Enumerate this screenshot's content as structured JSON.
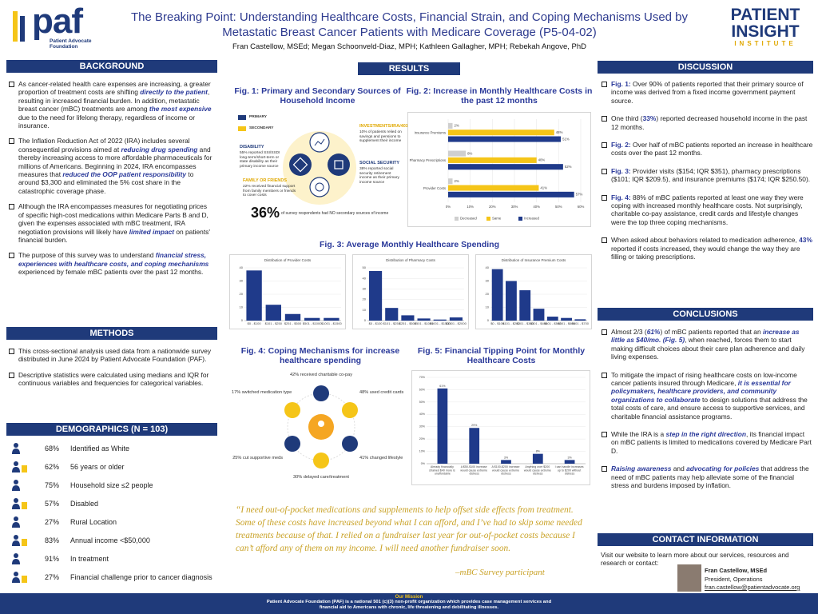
{
  "header": {
    "logo_left": "paf",
    "logo_left_sub": "Patient Advocate Foundation",
    "title": "The Breaking Point: Understanding Healthcare Costs, Financial Strain, and Coping Mechanisms Used by Metastatic Breast Cancer Patients with Medicare Coverage (P5-04-02)",
    "authors": "Fran Castellow, MSEd; Megan Schoonveld-Diaz, MPH; Kathleen Gallagher, MPH; Rebekah Angove, PhD",
    "logo_right": [
      "PATIENT",
      "INSIGHT",
      "INSTITUTE"
    ]
  },
  "background": {
    "heading": "BACKGROUND",
    "items": [
      [
        "As cancer-related health care expenses are increasing, a greater proportion of treatment costs are shifting ",
        "directly to the patient",
        ", resulting in increased financial burden. In addition, metastatic breast cancer (mBC) treatments are among ",
        "the most expensive",
        " due to the need for lifelong therapy, regardless of income or insurance."
      ],
      [
        "The Inflation Reduction Act of 2022 (IRA) includes several consequential provisions aimed at ",
        "reducing drug spending",
        " and thereby increasing access to more affordable pharmaceuticals for millions of Americans. Beginning in 2024, IRA encompasses measures that ",
        "reduced the OOP patient responsibility",
        " to around $3,300 and eliminated the 5% cost share in the catastrophic coverage phase."
      ],
      [
        "Although the IRA encompasses measures for negotiating prices of specific high-cost medications within Medicare Parts B and D, given the expenses associated with mBC treatment, IRA negotiation provisions will likely have ",
        "limited impact",
        " on patients' financial burden."
      ],
      [
        "The purpose of this survey was to understand ",
        "financial stress, experiences with healthcare costs, and coping mechanisms",
        " experienced by female mBC patients over the past 12 months."
      ]
    ]
  },
  "methods": {
    "heading": "METHODS",
    "items": [
      "This cross-sectional analysis used data from a nationwide survey distributed in June 2024 by Patient Advocate Foundation (PAF).",
      "Descriptive statistics were calculated using medians and IQR for continuous variables and frequencies for categorical variables."
    ]
  },
  "demographics": {
    "heading": "DEMOGRAPHICS (N = 103)",
    "items": [
      {
        "pct": "68%",
        "label": "Identified as White"
      },
      {
        "pct": "62%",
        "label": "56 years or older"
      },
      {
        "pct": "75%",
        "label": "Household size ≤2 people"
      },
      {
        "pct": "57%",
        "label": "Disabled"
      },
      {
        "pct": "27%",
        "label": "Rural Location"
      },
      {
        "pct": "83%",
        "label": "Annual income <$50,000"
      },
      {
        "pct": "91%",
        "label": "In treatment"
      },
      {
        "pct": "27%",
        "label": "Financial challenge prior to cancer diagnosis"
      }
    ]
  },
  "results": {
    "heading": "RESULTS",
    "fig1": {
      "title": "Fig. 1: Primary and Secondary Sources of Household Income",
      "legend": [
        "PRIMARY",
        "SECONDARY"
      ],
      "items": [
        {
          "heading": "DISABILITY",
          "text": "55% reported SSI/SSDI long-term/short-term or state disability as their primary income source"
        },
        {
          "heading": "INVESTMENTS/IRA/401K",
          "text": "10% of patients relied on savings and pensions to supplement their income"
        },
        {
          "heading": "SOCIAL SECURITY",
          "text": "38% reported social security retirement income as their primary income source"
        },
        {
          "heading": "FAMILY OR FRIENDS",
          "text": "22% received financial support from family members or friends to cover costs"
        }
      ],
      "big": "36%",
      "big_text": "of survey respondents had NO secondary sources of income"
    },
    "fig3_title": "Fig. 3: Average Monthly Healthcare Spending",
    "fig4": {
      "title": "Fig. 4: Coping Mechanisms for increase healthcare spending",
      "items": [
        "42% received charitable co-pay",
        "48% used credit cards",
        "41% changed lifestyle",
        "30% delayed care/treatment",
        "25% cut supportive meds",
        "17% switched medication type"
      ]
    },
    "quote": "“I need out-of-pocket medications and supplements to help offset side effects from treatment. Some of these costs have increased beyond what I can afford, and I’ve had to skip some needed treatments because of that. I relied on a fundraiser last year for out-of-pocket costs because I can’t afford any of them on my income. I will need another fundraiser soon.",
    "attribution": "–mBC Survey participant"
  },
  "chart_data": [
    {
      "type": "hbar",
      "title": "Fig. 2: Increase in Monthly Healthcare Costs in the past 12 months",
      "categories": [
        "Insurance Premiums",
        "Pharmacy Prescriptions",
        "Provider Costs"
      ],
      "series": [
        {
          "name": "Decreased",
          "color": "#cfcfcf",
          "values": [
            2,
            8,
            2
          ],
          "value_labels": [
            "2%",
            "8%",
            "2%"
          ]
        },
        {
          "name": "Same",
          "color": "#f5c518",
          "values": [
            48,
            40,
            41
          ],
          "value_labels": [
            "48%",
            "40%",
            "41%"
          ]
        },
        {
          "name": "Increased",
          "color": "#1f3a8a",
          "values": [
            51,
            52,
            57
          ],
          "value_labels": [
            "51%",
            "52%",
            "57%"
          ]
        }
      ],
      "xlim": [
        0,
        60
      ],
      "xticks": [
        {
          "value": 0,
          "label": "0%"
        },
        {
          "value": 10,
          "label": "10%"
        },
        {
          "value": 20,
          "label": "20%"
        },
        {
          "value": 30,
          "label": "30%"
        },
        {
          "value": 40,
          "label": "40%"
        },
        {
          "value": 50,
          "label": "50%"
        },
        {
          "value": 60,
          "label": "60%"
        }
      ],
      "grid": true
    },
    {
      "type": "bar",
      "title": "Distribution of Provider Costs",
      "categories": [
        "$0 - $100",
        "$101 - $250",
        "$251 - $500",
        "$501 - $1000",
        "$1001 - $1500"
      ],
      "values": [
        38,
        12,
        5,
        2,
        2
      ],
      "color": "#1f3a8a",
      "ylim": [
        0,
        40
      ],
      "yticks": [
        0,
        10,
        20,
        30,
        40
      ],
      "grid": true
    },
    {
      "type": "bar",
      "title": "Distribution of Pharmacy Costs",
      "categories": [
        "$0 - $100",
        "$101 - $250",
        "$251 - $500",
        "$501 - $1000",
        "$1001 - $1500",
        "$1501 - $2000"
      ],
      "values": [
        47,
        12,
        5,
        2,
        1,
        3
      ],
      "color": "#1f3a8a",
      "ylim": [
        0,
        50
      ],
      "yticks": [
        0,
        10,
        20,
        30,
        40,
        50
      ],
      "grid": true
    },
    {
      "type": "bar",
      "title": "Distribution of Insurance Premium Costs",
      "categories": [
        "$0 - $100",
        "$101 - $200",
        "$201 - $300",
        "$301 - $400",
        "$401 - $500",
        "$501 - $600",
        "$601 - $700"
      ],
      "values": [
        39,
        30,
        23,
        9,
        3,
        2,
        1
      ],
      "color": "#1f3a8a",
      "ylim": [
        0,
        40
      ],
      "yticks": [
        0,
        10,
        20,
        30,
        40
      ],
      "grid": true
    },
    {
      "type": "bar",
      "title": "Fig. 5: Financial Tipping Point for Monthly Healthcare Costs",
      "categories": [
        "Already financially strained $40 more is unaffordable",
        "A $50-$100 increase would cause extreme distress",
        "A $100-$200 increase would cause extreme distress",
        "Anything over $200 would cause extreme distress",
        "I can handle increases up to $200 without distress"
      ],
      "values": [
        61,
        29,
        3,
        8,
        3
      ],
      "value_labels": [
        "61%",
        "29%",
        "3%",
        "8%",
        "3%"
      ],
      "color": "#1f3a8a",
      "ylim": [
        0,
        70
      ],
      "yticks": [
        {
          "value": 0,
          "label": "0%"
        },
        {
          "value": 10,
          "label": "10%"
        },
        {
          "value": 20,
          "label": "20%"
        },
        {
          "value": 30,
          "label": "30%"
        },
        {
          "value": 40,
          "label": "40%"
        },
        {
          "value": 50,
          "label": "50%"
        },
        {
          "value": 60,
          "label": "60%"
        },
        {
          "value": 70,
          "label": "70%"
        }
      ],
      "grid": true
    }
  ],
  "discussion": {
    "heading": "DISCUSSION",
    "items": [
      [
        "Fig. 1:",
        " Over 90% of patients reported that their primary source of income was derived from a fixed income government payment source."
      ],
      [
        "One third (",
        "33%",
        ") reported decreased household income in the past 12 months."
      ],
      [
        "Fig. 2:",
        " Over half of mBC patients reported an increase in healthcare costs over the past 12 months."
      ],
      [
        "Fig. 3:",
        " Provider visits ($154; IQR $351), pharmacy prescriptions ($101; IQR $209.5), and insurance premiums ($174; IQR $250.50)."
      ],
      [
        "Fig. 4:",
        " 88% of mBC patients reported at least one way they were coping with increased monthly healthcare costs. Not surprisingly, charitable co-pay assistance, credit cards and lifestyle changes were the top three coping mechanisms."
      ],
      [
        "When asked about behaviors related to medication adherence, ",
        "43%",
        " reported if costs increased, they would change the way they are filling or taking prescriptions."
      ]
    ]
  },
  "conclusions": {
    "heading": "CONCLUSIONS",
    "items": [
      [
        "Almost 2/3 (",
        "61%",
        ") of mBC patients reported that an ",
        "increase as little as $40/mo. (Fig. 5)",
        ", when reached, forces them to start making difficult choices about their care plan adherence and daily living expenses."
      ],
      [
        "To mitigate the impact of rising healthcare costs on low-income cancer patients insured through Medicare, ",
        "it is essential for policymakers, healthcare providers, and community organizations to collaborate",
        " to design solutions that address the total costs of care, and ensure access to supportive services, and charitable financial assistance programs."
      ],
      [
        "While the IRA is a ",
        "step in the right direction",
        ", its financial impact on mBC patients is limited to medications covered by Medicare Part D."
      ],
      [
        "Raising awareness",
        " and ",
        "advocating for policies",
        " that address the need of mBC patients may help alleviate some of the financial stress and burdens imposed by inflation."
      ]
    ]
  },
  "contact": {
    "heading": "CONTACT INFORMATION",
    "text": "Visit our website to learn more about our services, resources and research or contact:",
    "name": "Fran Castellow, MSEd",
    "role": "President, Operations",
    "email": "fran.castellow@patientadvocate.org"
  },
  "footer": {
    "heading": "Our Mission",
    "text": "Patient Advocate Foundation (PAF) is a national 501 (c)(3) non-profit organization which provides case management services and financial aid to Americans with chronic, life threatening and debilitating illnesses."
  }
}
